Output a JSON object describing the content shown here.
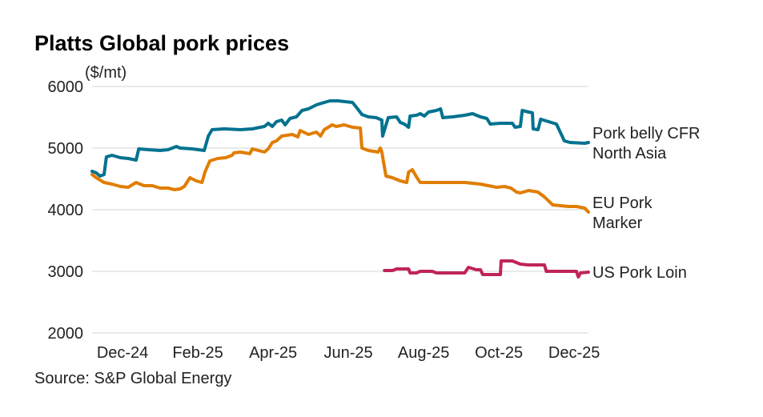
{
  "chart_data": {
    "type": "line",
    "title": "Platts Global pork prices",
    "ylabel": "($/mt)",
    "xlabel": "",
    "source": "Source: S&P Global Energy",
    "ylim": [
      2000,
      6000
    ],
    "yticks": [
      2000,
      3000,
      4000,
      5000,
      6000
    ],
    "xlim": [
      -0.81,
      12.38
    ],
    "x_unit": "months since Dec-24",
    "xticks": [
      {
        "label": "Dec-24",
        "value": 0
      },
      {
        "label": "Feb-25",
        "value": 2
      },
      {
        "label": "Apr-25",
        "value": 4
      },
      {
        "label": "Jun-25",
        "value": 6
      },
      {
        "label": "Aug-25",
        "value": 8
      },
      {
        "label": "Oct-25",
        "value": 10
      },
      {
        "label": "Dec-25",
        "value": 12
      }
    ],
    "grid": true,
    "series": [
      {
        "name": "Pork belly CFR North Asia",
        "label_lines": [
          "Pork belly CFR",
          "North Asia"
        ],
        "color": "#00728f",
        "x": [
          -0.81,
          -0.7,
          -0.6,
          -0.49,
          -0.43,
          -0.28,
          -0.06,
          0.15,
          0.36,
          0.43,
          0.68,
          1.0,
          1.21,
          1.43,
          1.53,
          1.85,
          2.17,
          2.28,
          2.38,
          2.7,
          3.13,
          3.45,
          3.77,
          3.87,
          3.98,
          4.09,
          4.23,
          4.32,
          4.45,
          4.62,
          4.77,
          4.94,
          5.15,
          5.36,
          5.51,
          5.72,
          6.11,
          6.23,
          6.36,
          6.53,
          6.74,
          6.89,
          6.91,
          7.06,
          7.28,
          7.38,
          7.49,
          7.6,
          7.64,
          7.81,
          7.91,
          8.02,
          8.13,
          8.34,
          8.45,
          8.51,
          8.77,
          9.09,
          9.3,
          9.51,
          9.68,
          9.77,
          10.04,
          10.36,
          10.43,
          10.57,
          10.62,
          10.79,
          10.89,
          10.91,
          11.04,
          11.11,
          11.32,
          11.53,
          11.74,
          11.89,
          12.28,
          12.38
        ],
        "y": [
          4623,
          4597,
          4545,
          4571,
          4857,
          4883,
          4844,
          4831,
          4805,
          4987,
          4974,
          4961,
          4974,
          5026,
          5000,
          4987,
          4961,
          5195,
          5299,
          5312,
          5299,
          5312,
          5351,
          5403,
          5351,
          5429,
          5455,
          5377,
          5481,
          5506,
          5610,
          5636,
          5701,
          5740,
          5766,
          5766,
          5740,
          5649,
          5545,
          5506,
          5494,
          5455,
          5195,
          5494,
          5506,
          5416,
          5390,
          5338,
          5519,
          5532,
          5558,
          5519,
          5584,
          5610,
          5636,
          5494,
          5506,
          5532,
          5558,
          5506,
          5481,
          5390,
          5403,
          5403,
          5338,
          5351,
          5610,
          5584,
          5571,
          5312,
          5299,
          5468,
          5429,
          5390,
          5117,
          5091,
          5078,
          5091
        ]
      },
      {
        "name": "EU Pork Marker",
        "label_lines": [
          "EU Pork",
          "Marker"
        ],
        "color": "#e07d00",
        "x": [
          -0.81,
          -0.7,
          -0.49,
          -0.28,
          -0.06,
          0.15,
          0.36,
          0.57,
          0.79,
          1.0,
          1.21,
          1.38,
          1.53,
          1.64,
          1.79,
          1.96,
          2.11,
          2.19,
          2.32,
          2.53,
          2.74,
          2.91,
          2.96,
          3.13,
          3.38,
          3.45,
          3.77,
          3.87,
          3.98,
          4.09,
          4.23,
          4.51,
          4.66,
          4.72,
          4.94,
          5.15,
          5.26,
          5.36,
          5.57,
          5.68,
          5.89,
          6.11,
          6.32,
          6.36,
          6.53,
          6.79,
          6.85,
          6.89,
          7.0,
          7.17,
          7.38,
          7.55,
          7.6,
          7.7,
          7.81,
          7.91,
          8.23,
          8.66,
          9.09,
          9.51,
          9.72,
          9.94,
          10.15,
          10.32,
          10.47,
          10.57,
          10.79,
          11.04,
          11.21,
          11.43,
          11.64,
          11.85,
          12.06,
          12.28,
          12.38
        ],
        "y": [
          4571,
          4519,
          4442,
          4416,
          4377,
          4364,
          4442,
          4390,
          4390,
          4351,
          4351,
          4325,
          4338,
          4377,
          4519,
          4468,
          4442,
          4610,
          4792,
          4831,
          4844,
          4883,
          4922,
          4935,
          4909,
          4987,
          4935,
          4987,
          5091,
          5117,
          5195,
          5221,
          5182,
          5286,
          5221,
          5260,
          5195,
          5299,
          5377,
          5351,
          5377,
          5338,
          5325,
          5000,
          4961,
          4935,
          5000,
          4935,
          4545,
          4519,
          4468,
          4442,
          4610,
          4649,
          4532,
          4442,
          4442,
          4442,
          4442,
          4416,
          4390,
          4364,
          4377,
          4351,
          4286,
          4273,
          4312,
          4286,
          4208,
          4078,
          4065,
          4052,
          4052,
          4026,
          3961
        ]
      },
      {
        "name": "US Pork Loin",
        "label_lines": [
          "US Pork Loin"
        ],
        "color": "#c0245a",
        "x": [
          6.96,
          7.17,
          7.28,
          7.6,
          7.64,
          7.81,
          7.91,
          8.23,
          8.34,
          9.09,
          9.19,
          9.4,
          9.51,
          9.57,
          10.04,
          10.06,
          10.36,
          10.57,
          10.79,
          11.21,
          11.26,
          12.06,
          12.11,
          12.17,
          12.38
        ],
        "y": [
          3013,
          3013,
          3039,
          3039,
          2974,
          2974,
          3000,
          3000,
          2974,
          2974,
          3065,
          3026,
          3026,
          2948,
          2948,
          3169,
          3169,
          3117,
          3104,
          3104,
          3000,
          3000,
          2909,
          2974,
          2987
        ]
      }
    ]
  }
}
